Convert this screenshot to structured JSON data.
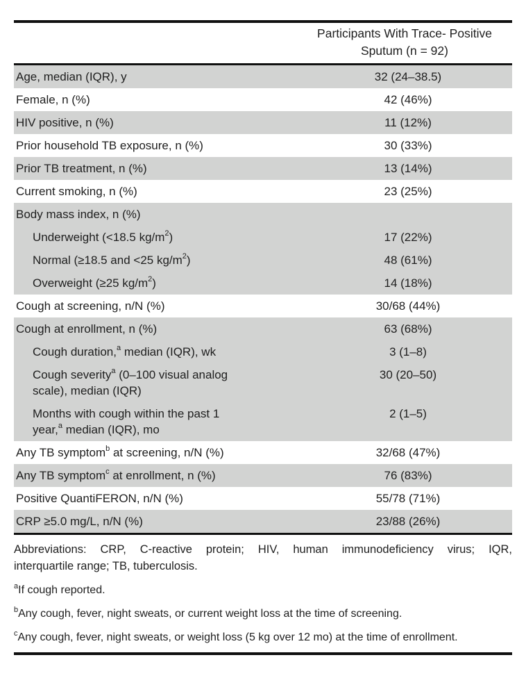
{
  "colors": {
    "row_shade": "#d2d3d2",
    "rule": "#101010",
    "text": "#1e1e1e"
  },
  "header": {
    "line1": "Participants With Trace- Positive",
    "line2": "Sputum (n = 92)"
  },
  "rows": [
    {
      "label": "Age, median (IQR), y",
      "value": "32 (24–38.5)"
    },
    {
      "label": "Female, n (%)",
      "value": "42 (46%)"
    },
    {
      "label": "HIV positive, n (%)",
      "value": "11 (12%)"
    },
    {
      "label": "Prior household TB exposure, n (%)",
      "value": "30 (33%)"
    },
    {
      "label": "Prior TB treatment, n (%)",
      "value": "13 (14%)"
    },
    {
      "label": "Current smoking, n (%)",
      "value": "23 (25%)"
    },
    {
      "label": "Body mass index, n (%)",
      "value": ""
    },
    {
      "pre": "Underweight (<18.5 kg/m",
      "sup": "2",
      "post": ")",
      "value": "17 (22%)"
    },
    {
      "pre": "Normal (≥18.5 and <25 kg/m",
      "sup": "2",
      "post": ")",
      "value": "48 (61%)"
    },
    {
      "pre": "Overweight (≥25 kg/m",
      "sup": "2",
      "post": ")",
      "value": "14 (18%)"
    },
    {
      "label": "Cough at screening, n/N (%)",
      "value": "30/68 (44%)"
    },
    {
      "label": "Cough at enrollment, n (%)",
      "value": "63 (68%)"
    },
    {
      "pre": "Cough duration,",
      "sup": "a",
      "post": " median (IQR), wk",
      "value": "3 (1–8)"
    },
    {
      "pre": "Cough severity",
      "sup": "a",
      "post": " (0–100 visual analog",
      "line2": "scale), median (IQR)",
      "value": "30 (20–50)"
    },
    {
      "line1": "Months with cough within the past 1",
      "pre2": "year,",
      "sup2": "a",
      "post2": " median (IQR), mo",
      "value": "2 (1–5)"
    },
    {
      "pre": "Any TB symptom",
      "sup": "b",
      "post": " at screening, n/N (%)",
      "value": "32/68 (47%)"
    },
    {
      "pre": "Any TB symptom",
      "sup": "c",
      "post": " at enrollment, n (%)",
      "value": "76 (83%)"
    },
    {
      "label": "Positive QuantiFERON, n/N (%)",
      "value": "55/78 (71%)"
    },
    {
      "label": "CRP ≥5.0 mg/L, n/N (%)",
      "value": "23/88 (26%)"
    }
  ],
  "footnotes": {
    "abbrev_line1": "Abbreviations: CRP, C-reactive protein; HIV, human immunodeficiency virus; IQR,",
    "abbrev_line2": "interquartile range; TB, tuberculosis.",
    "items": [
      {
        "sup": "a",
        "text": "If cough reported."
      },
      {
        "sup": "b",
        "text": "Any cough, fever, night sweats, or current weight loss at the time of screening."
      },
      {
        "sup": "c",
        "text": "Any cough, fever, night sweats, or weight loss (5 kg over 12 mo) at the time of enrollment."
      }
    ]
  }
}
